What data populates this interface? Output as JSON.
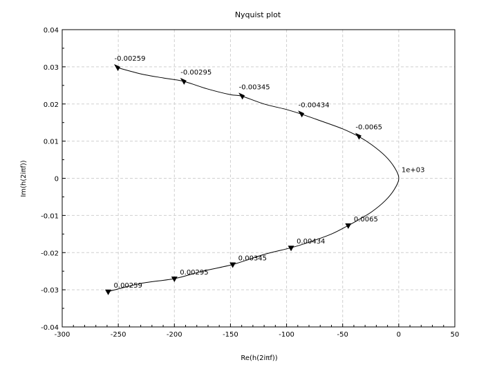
{
  "chart_data": {
    "type": "line",
    "title": "Nyquist plot",
    "xlabel": "Re(h(2iπf))",
    "ylabel": "Im(h(2iπf))",
    "xlim": [
      -300,
      50
    ],
    "ylim": [
      -0.04,
      0.04
    ],
    "grid": true,
    "x_ticks": [
      "-300",
      "-250",
      "-200",
      "-150",
      "-100",
      "-50",
      "0",
      "50"
    ],
    "y_ticks": [
      "-0.04",
      "-0.03",
      "-0.02",
      "-0.01",
      "0",
      "0.01",
      "0.02",
      "0.03",
      "0.04"
    ],
    "series": [
      {
        "x": [
          -251,
          -230,
          -210,
          -192,
          -170,
          -150,
          -140,
          -120,
          -100,
          -87,
          -70,
          -50,
          -36,
          -24,
          -12,
          -4,
          0,
          -4,
          -12,
          -24,
          -36,
          -45,
          -60,
          -80,
          -96,
          -120,
          -148,
          -175,
          -200,
          -230,
          -259
        ],
        "y": [
          0.0298,
          0.0281,
          0.027,
          0.0261,
          0.024,
          0.0225,
          0.0221,
          0.02,
          0.0185,
          0.0173,
          0.0155,
          0.0133,
          0.0113,
          0.009,
          0.006,
          0.003,
          0.0,
          -0.003,
          -0.006,
          -0.009,
          -0.0112,
          -0.0127,
          -0.015,
          -0.0172,
          -0.0187,
          -0.0205,
          -0.0232,
          -0.025,
          -0.027,
          -0.0283,
          -0.0305
        ]
      }
    ],
    "annotations": [
      {
        "text": "-0.00259",
        "x": -251,
        "y": 0.0298,
        "arrow": "up"
      },
      {
        "text": "-0.00295",
        "x": -192,
        "y": 0.0261,
        "arrow": "up"
      },
      {
        "text": "-0.00345",
        "x": -140,
        "y": 0.0221,
        "arrow": "up"
      },
      {
        "text": "-0.00434",
        "x": -87,
        "y": 0.0173,
        "arrow": "up"
      },
      {
        "text": "-0.0065",
        "x": -36,
        "y": 0.0113,
        "arrow": "up"
      },
      {
        "text": "1e+03",
        "x": 0,
        "y": 0.0,
        "arrow": "none"
      },
      {
        "text": "0.0065",
        "x": -45,
        "y": -0.0127,
        "arrow": "down"
      },
      {
        "text": "0.00434",
        "x": -96,
        "y": -0.0187,
        "arrow": "down"
      },
      {
        "text": "0.00345",
        "x": -148,
        "y": -0.0232,
        "arrow": "down"
      },
      {
        "text": "0.00295",
        "x": -200,
        "y": -0.027,
        "arrow": "down"
      },
      {
        "text": "0.00259",
        "x": -259,
        "y": -0.0305,
        "arrow": "down"
      }
    ]
  }
}
